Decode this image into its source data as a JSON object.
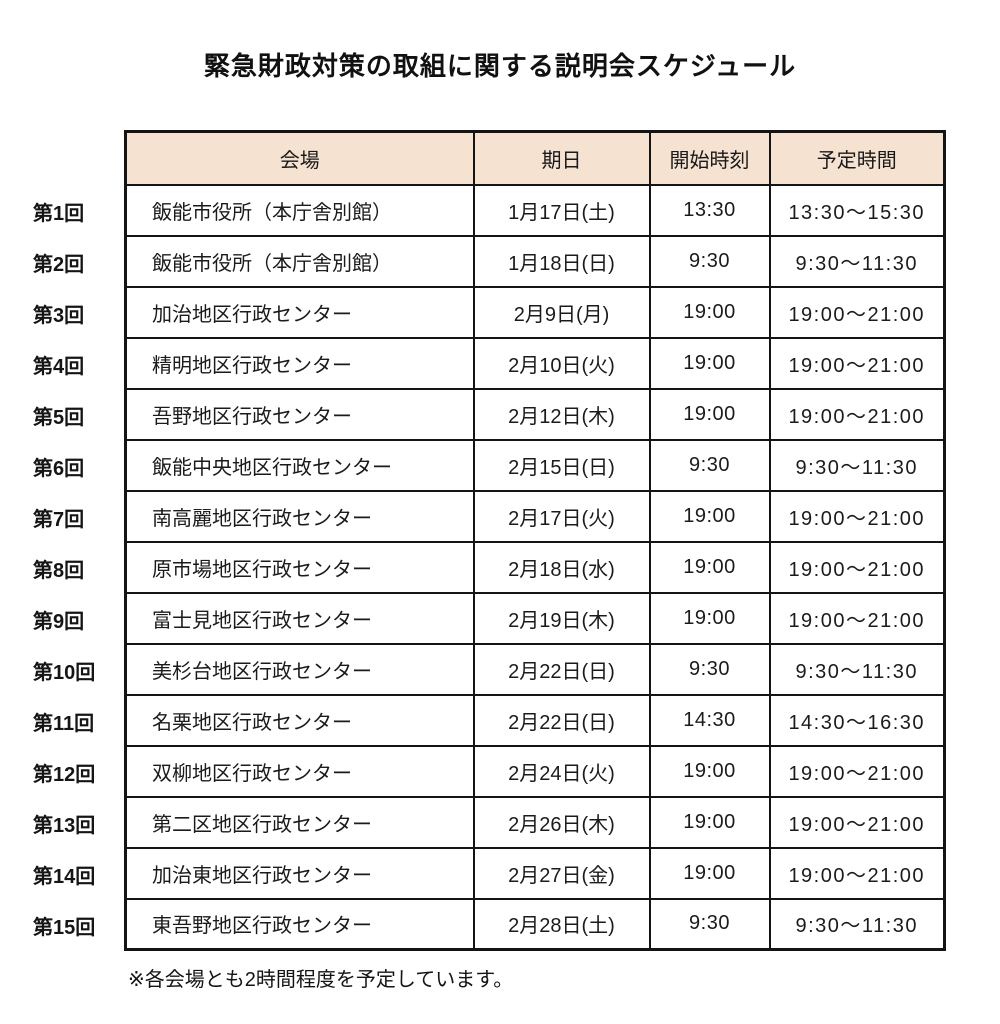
{
  "page": {
    "title": "緊急財政対策の取組に関する説明会スケジュール",
    "footnote": "※各会場とも2時間程度を予定しています。"
  },
  "colors": {
    "header_bg": "#f6e2d0",
    "border": "#141414"
  },
  "table": {
    "columns": {
      "venue": "会場",
      "date": "期日",
      "start": "開始時刻",
      "time": "予定時間"
    },
    "rows": [
      {
        "label": "第1回",
        "venue": "飯能市役所（本庁舎別館）",
        "date": "1月17日(土)",
        "start": "13:30",
        "time": "13:30～15:30"
      },
      {
        "label": "第2回",
        "venue": "飯能市役所（本庁舎別館）",
        "date": "1月18日(日)",
        "start": "9:30",
        "time": "9:30～11:30"
      },
      {
        "label": "第3回",
        "venue": "加治地区行政センター",
        "date": "2月9日(月)",
        "start": "19:00",
        "time": "19:00～21:00"
      },
      {
        "label": "第4回",
        "venue": "精明地区行政センター",
        "date": "2月10日(火)",
        "start": "19:00",
        "time": "19:00～21:00"
      },
      {
        "label": "第5回",
        "venue": "吾野地区行政センター",
        "date": "2月12日(木)",
        "start": "19:00",
        "time": "19:00～21:00"
      },
      {
        "label": "第6回",
        "venue": "飯能中央地区行政センター",
        "date": "2月15日(日)",
        "start": "9:30",
        "time": "9:30～11:30"
      },
      {
        "label": "第7回",
        "venue": "南高麗地区行政センター",
        "date": "2月17日(火)",
        "start": "19:00",
        "time": "19:00～21:00"
      },
      {
        "label": "第8回",
        "venue": "原市場地区行政センター",
        "date": "2月18日(水)",
        "start": "19:00",
        "time": "19:00～21:00"
      },
      {
        "label": "第9回",
        "venue": "富士見地区行政センター",
        "date": "2月19日(木)",
        "start": "19:00",
        "time": "19:00～21:00"
      },
      {
        "label": "第10回",
        "venue": "美杉台地区行政センター",
        "date": "2月22日(日)",
        "start": "9:30",
        "time": "9:30～11:30"
      },
      {
        "label": "第11回",
        "venue": "名栗地区行政センター",
        "date": "2月22日(日)",
        "start": "14:30",
        "time": "14:30～16:30"
      },
      {
        "label": "第12回",
        "venue": "双柳地区行政センター",
        "date": "2月24日(火)",
        "start": "19:00",
        "time": "19:00～21:00"
      },
      {
        "label": "第13回",
        "venue": "第二区地区行政センター",
        "date": "2月26日(木)",
        "start": "19:00",
        "time": "19:00～21:00"
      },
      {
        "label": "第14回",
        "venue": "加治東地区行政センター",
        "date": "2月27日(金)",
        "start": "19:00",
        "time": "19:00～21:00"
      },
      {
        "label": "第15回",
        "venue": "東吾野地区行政センター",
        "date": "2月28日(土)",
        "start": "9:30",
        "time": "9:30～11:30"
      }
    ]
  }
}
